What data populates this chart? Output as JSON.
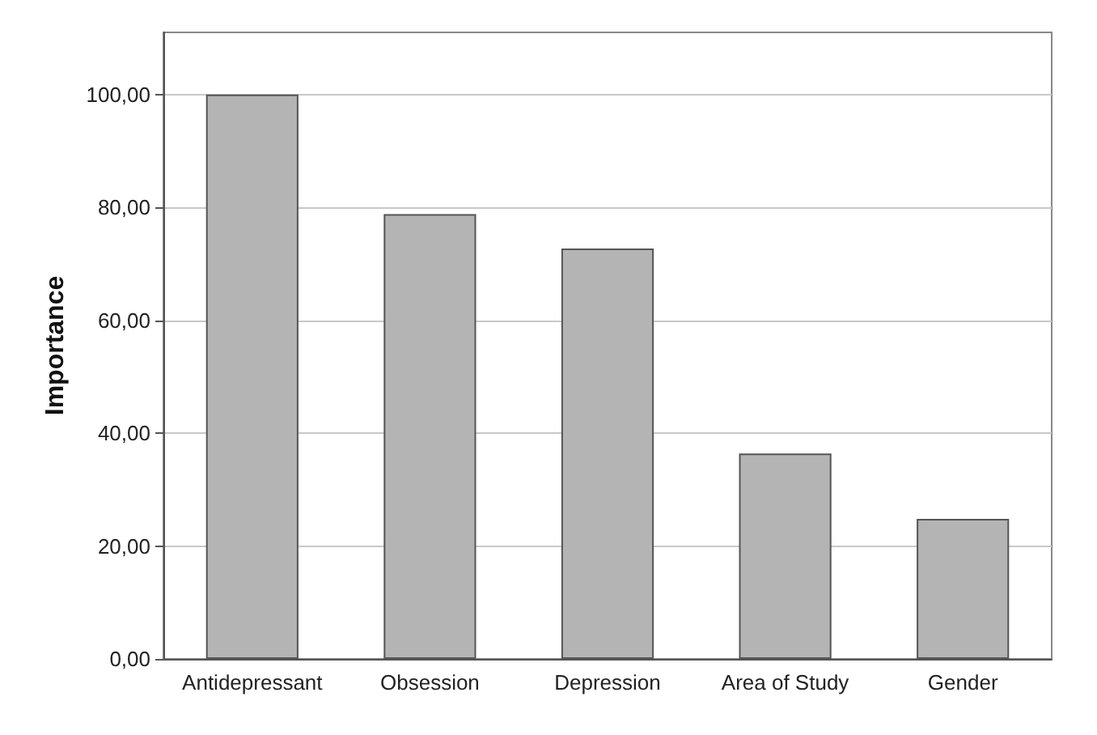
{
  "chart_data": {
    "type": "bar",
    "ylabel": "Importance",
    "categories": [
      "Antidepressant",
      "Obsession",
      "Depression",
      "Area of Study",
      "Gender"
    ],
    "values": [
      100,
      78.8,
      72.7,
      36.4,
      24.8
    ],
    "color": "#b4b4b4",
    "ylim": [
      0,
      111
    ],
    "yticks": [
      {
        "value": 0,
        "label": "0,00"
      },
      {
        "value": 20,
        "label": "20,00"
      },
      {
        "value": 40,
        "label": "40,00"
      },
      {
        "value": 60,
        "label": "60,00"
      },
      {
        "value": 80,
        "label": "80,00"
      },
      {
        "value": 100,
        "label": "100,00"
      }
    ],
    "grid": "y"
  }
}
